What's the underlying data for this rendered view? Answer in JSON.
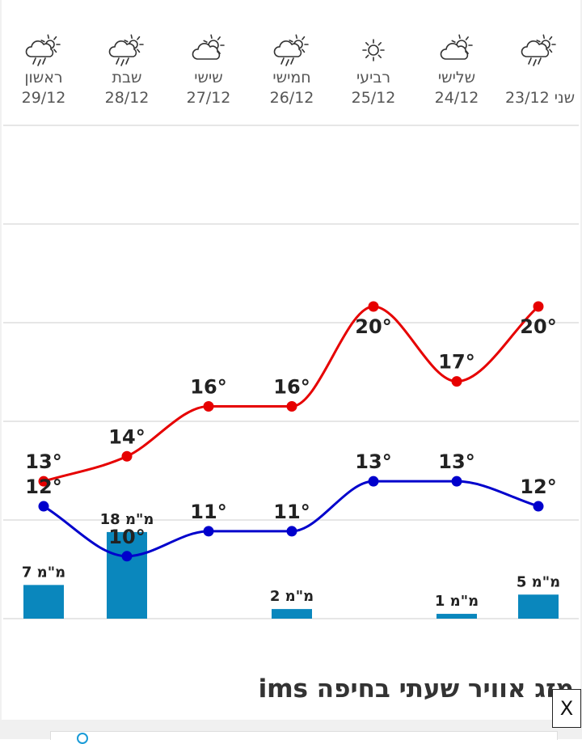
{
  "chart_data": {
    "type": "line",
    "days": [
      {
        "name": "ראשון",
        "date": "29/12",
        "icon": "rain-sun-icon"
      },
      {
        "name": "שבת",
        "date": "28/12",
        "icon": "rain-sun-icon"
      },
      {
        "name": "שישי",
        "date": "27/12",
        "icon": "partly-cloudy-icon"
      },
      {
        "name": "חמישי",
        "date": "26/12",
        "icon": "rain-sun-icon"
      },
      {
        "name": "רביעי",
        "date": "25/12",
        "icon": "sun-icon"
      },
      {
        "name": "שלישי",
        "date": "24/12",
        "icon": "partly-cloudy-icon"
      },
      {
        "name": "שני",
        "date": "23/12",
        "icon": "rain-sun-icon"
      }
    ],
    "series": [
      {
        "name": "max",
        "color": "#e60000",
        "values": [
          13,
          14,
          16,
          16,
          20,
          17,
          20
        ]
      },
      {
        "name": "min",
        "color": "#0000cc",
        "values": [
          12,
          10,
          11,
          11,
          13,
          13,
          12
        ]
      }
    ],
    "rain": {
      "color": "#0a87bd",
      "values": [
        7,
        18,
        null,
        2,
        null,
        1,
        5
      ],
      "labels": [
        "7 מ\"מ",
        "18 מ\"מ",
        "",
        "2 מ\"מ",
        "",
        "1 מ\"מ",
        "5 מ\"מ"
      ]
    },
    "degree_symbol": "°",
    "grid": true
  },
  "footer": {
    "title": "מזג אוויר שעתי בחיפה ims",
    "close_label": "X"
  }
}
